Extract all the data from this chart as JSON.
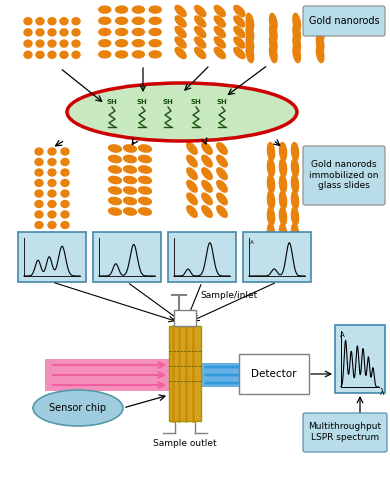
{
  "bg_color": "#ffffff",
  "gold_color": "#E8820C",
  "light_blue": "#B8DCE8",
  "light_blue2": "#C0E0EC",
  "pink_color": "#F060A0",
  "blue_beam": "#3399DD",
  "gold_chip_color": "#D4A020",
  "gold_line_color": "#C89000",
  "green_oval_fill": "#C8E8C0",
  "red_oval_edge": "#CC0000",
  "sensor_ellipse_color": "#A0CCE0",
  "sensor_ellipse_edge": "#5599AA",
  "label_gold_nanorods": "Gold nanorods",
  "label_immobilized": "Gold nanorods\nimmobilized on\nglass slides",
  "label_sample_inlet": "Sample/inlet",
  "label_sample_outlet": "Sample outlet",
  "label_detector": "Detector",
  "label_sensor_chip": "Sensor chip",
  "label_spectrum": "Multithroughput\nLSPR spectrum",
  "label_A": "A",
  "label_lambda": "λ"
}
